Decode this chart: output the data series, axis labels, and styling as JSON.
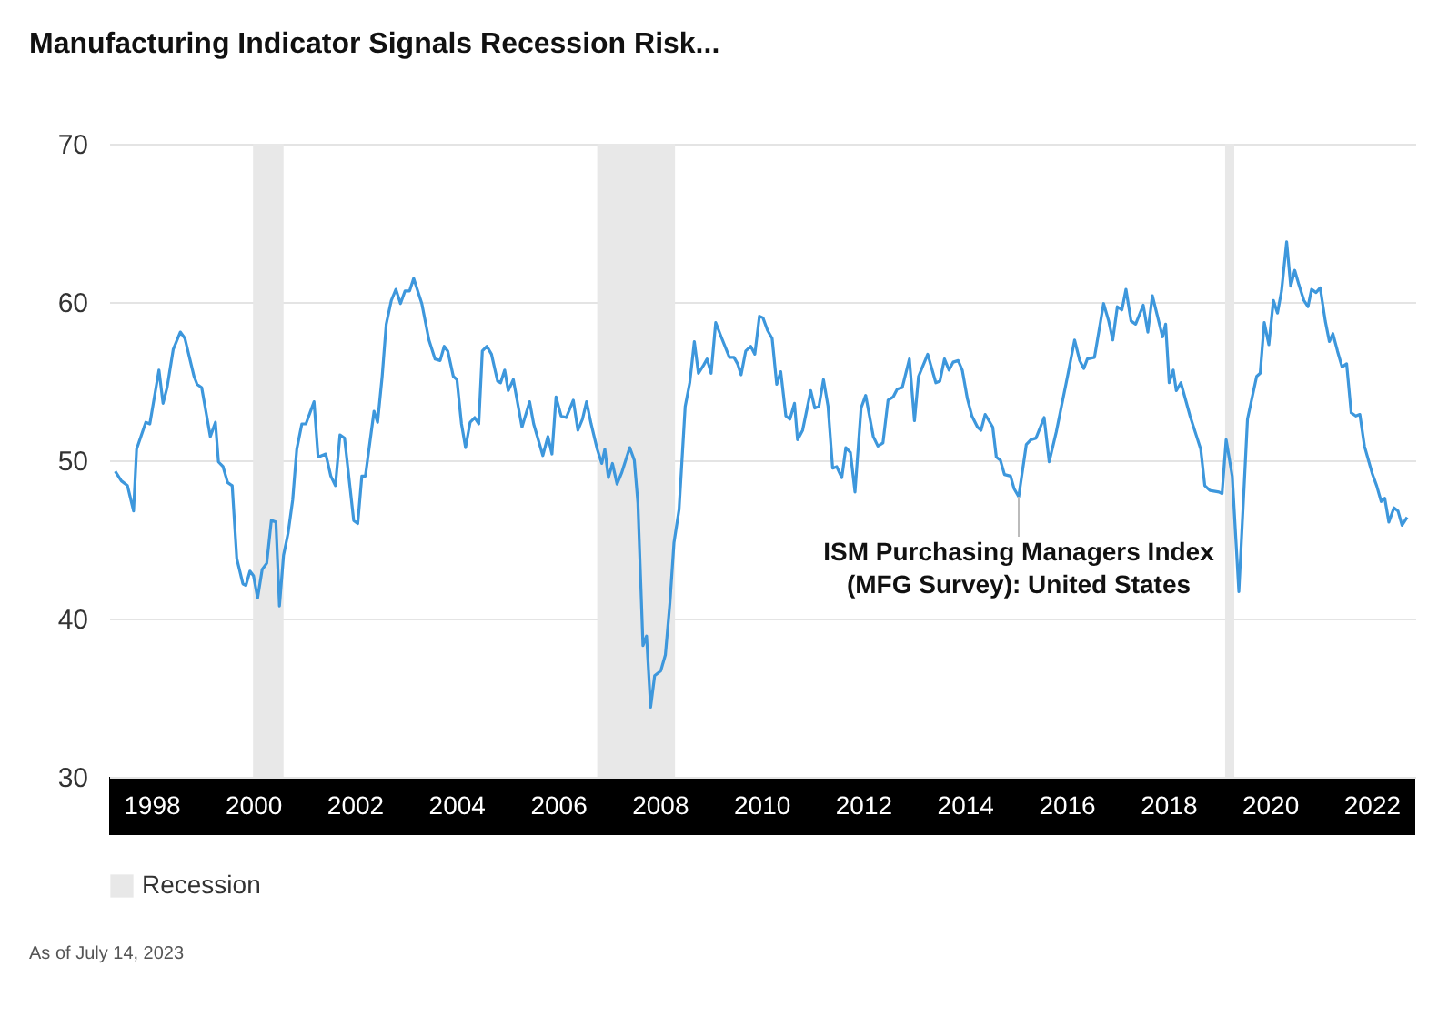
{
  "chart_data": {
    "type": "line",
    "title": "Manufacturing Indicator Signals Recession Risk...",
    "annotations": [
      {
        "text": "ISM Purchasing Managers Index\n(MFG Survey): United States",
        "x": 2015.06,
        "y": 47.7
      },
      "As of July 14, 2023"
    ],
    "xlim": [
      1997.17,
      2022.86
    ],
    "xticks": [
      1998,
      2000,
      2002,
      2004,
      2006,
      2008,
      2010,
      2012,
      2014,
      2016,
      2018,
      2020,
      2022
    ],
    "ylim": [
      30,
      70
    ],
    "yticks": [
      30,
      40,
      50,
      60,
      70
    ],
    "grid": "y",
    "legend": "bottom",
    "bands": [
      {
        "axis": "x",
        "from": 2000.0,
        "to": 2000.6,
        "label": "Recession",
        "color": "#e8e8e8"
      },
      {
        "axis": "x",
        "from": 2006.77,
        "to": 2008.3,
        "color": "#e8e8e8"
      },
      {
        "axis": "x",
        "from": 2019.12,
        "to": 2019.3,
        "color": "#e8e8e8"
      }
    ],
    "x": [
      1997.29,
      1997.41,
      1997.53,
      1997.65,
      1997.71,
      1997.89,
      1997.97,
      1998.15,
      1998.23,
      1998.31,
      1998.43,
      1998.57,
      1998.66,
      1998.84,
      1998.9,
      1998.99,
      1999.16,
      1999.26,
      1999.32,
      1999.41,
      1999.5,
      1999.59,
      1999.68,
      1999.8,
      1999.86,
      1999.94,
      2000.01,
      2000.09,
      2000.18,
      2000.27,
      2000.36,
      2000.45,
      2000.52,
      2000.6,
      2000.69,
      2000.78,
      2000.86,
      2000.96,
      2001.04,
      2001.2,
      2001.28,
      2001.43,
      2001.53,
      2001.62,
      2001.71,
      2001.8,
      2001.98,
      2002.06,
      2002.14,
      2002.21,
      2002.38,
      2002.45,
      2002.54,
      2002.62,
      2002.72,
      2002.81,
      2002.9,
      2002.99,
      2003.08,
      2003.16,
      2003.32,
      2003.46,
      2003.58,
      2003.68,
      2003.76,
      2003.83,
      2003.94,
      2004.01,
      2004.1,
      2004.18,
      2004.27,
      2004.36,
      2004.44,
      2004.51,
      2004.6,
      2004.69,
      2004.81,
      2004.87,
      2004.95,
      2005.02,
      2005.12,
      2005.29,
      2005.44,
      2005.52,
      2005.7,
      2005.8,
      2005.88,
      2005.96,
      2006.06,
      2006.16,
      2006.3,
      2006.39,
      2006.48,
      2006.56,
      2006.65,
      2006.77,
      2006.86,
      2006.92,
      2006.99,
      2007.07,
      2007.16,
      2007.25,
      2007.41,
      2007.5,
      2007.57,
      2007.67,
      2007.74,
      2007.82,
      2007.9,
      2008.02,
      2008.11,
      2008.2,
      2008.28,
      2008.38,
      2008.5,
      2008.59,
      2008.68,
      2008.76,
      2008.86,
      2008.93,
      2009.01,
      2009.1,
      2009.22,
      2009.37,
      2009.46,
      2009.53,
      2009.6,
      2009.69,
      2009.79,
      2009.87,
      2009.96,
      2010.03,
      2010.12,
      2010.21,
      2010.3,
      2010.38,
      2010.48,
      2010.56,
      2010.65,
      2010.71,
      2010.81,
      2010.97,
      2011.05,
      2011.13,
      2011.22,
      2011.31,
      2011.4,
      2011.48,
      2011.58,
      2011.66,
      2011.75,
      2011.84,
      2011.96,
      2012.05,
      2012.2,
      2012.29,
      2012.39,
      2012.49,
      2012.59,
      2012.67,
      2012.77,
      2012.91,
      2013.01,
      2013.09,
      2013.27,
      2013.43,
      2013.51,
      2013.6,
      2013.69,
      2013.77,
      2013.87,
      2013.95,
      2014.05,
      2014.14,
      2014.25,
      2014.32,
      2014.4,
      2014.55,
      2014.62,
      2014.7,
      2014.78,
      2014.9,
      2014.97,
      2015.06,
      2015.21,
      2015.3,
      2015.4,
      2015.56,
      2015.66,
      2015.8,
      2016.02,
      2016.16,
      2016.26,
      2016.34,
      2016.41,
      2016.55,
      2016.73,
      2016.83,
      2016.91,
      2017.0,
      2017.09,
      2017.17,
      2017.27,
      2017.36,
      2017.51,
      2017.6,
      2017.69,
      2017.89,
      2017.95,
      2018.02,
      2018.1,
      2018.16,
      2018.25,
      2018.43,
      2018.58,
      2018.64,
      2018.72,
      2018.82,
      2019.0,
      2019.06,
      2019.14,
      2019.26,
      2019.39,
      2019.56,
      2019.74,
      2019.81,
      2019.89,
      2019.98,
      2020.07,
      2020.15,
      2020.23,
      2020.33,
      2020.41,
      2020.49,
      2020.57,
      2020.67,
      2020.75,
      2020.82,
      2020.91,
      2020.99,
      2021.09,
      2021.17,
      2021.24,
      2021.33,
      2021.42,
      2021.51,
      2021.6,
      2021.69,
      2021.77,
      2021.86,
      2022.01,
      2022.1,
      2022.19,
      2022.26,
      2022.34,
      2022.44,
      2022.52,
      2022.6,
      2022.7
    ],
    "series": [
      {
        "color": "#3d97dc",
        "values": [
          49.3,
          48.7,
          48.4,
          46.8,
          50.7,
          52.4,
          52.3,
          55.7,
          53.6,
          54.6,
          57.0,
          58.1,
          57.7,
          55.3,
          54.8,
          54.6,
          51.5,
          52.4,
          49.9,
          49.6,
          48.6,
          48.4,
          43.8,
          42.2,
          42.1,
          43.0,
          42.7,
          41.3,
          43.1,
          43.5,
          46.2,
          46.1,
          40.8,
          44.0,
          45.4,
          47.5,
          50.7,
          52.3,
          52.3,
          53.7,
          50.2,
          50.4,
          49.0,
          48.4,
          51.6,
          51.4,
          46.2,
          46.0,
          49.0,
          49.0,
          53.1,
          52.4,
          55.3,
          58.6,
          60.1,
          60.8,
          59.9,
          60.7,
          60.7,
          61.5,
          59.9,
          57.6,
          56.4,
          56.3,
          57.2,
          56.9,
          55.3,
          55.1,
          52.3,
          50.8,
          52.4,
          52.7,
          52.3,
          56.9,
          57.2,
          56.7,
          55.0,
          54.9,
          55.7,
          54.4,
          55.1,
          52.1,
          53.7,
          52.3,
          50.3,
          51.5,
          50.4,
          54.0,
          52.8,
          52.7,
          53.8,
          51.9,
          52.6,
          53.7,
          52.3,
          50.7,
          49.8,
          50.7,
          48.9,
          49.8,
          48.5,
          49.2,
          50.8,
          50.0,
          47.3,
          38.3,
          38.9,
          34.4,
          36.4,
          36.7,
          37.7,
          41.0,
          44.8,
          46.9,
          53.4,
          54.9,
          57.5,
          55.5,
          56.0,
          56.4,
          55.5,
          58.7,
          57.7,
          56.5,
          56.5,
          56.1,
          55.4,
          56.9,
          57.2,
          56.7,
          59.1,
          59.0,
          58.2,
          57.7,
          54.8,
          55.6,
          52.8,
          52.6,
          53.6,
          51.3,
          51.9,
          54.4,
          53.3,
          53.4,
          55.1,
          53.4,
          49.5,
          49.6,
          48.9,
          50.8,
          50.5,
          48.0,
          53.3,
          54.1,
          51.5,
          50.9,
          51.1,
          53.8,
          54.0,
          54.5,
          54.6,
          56.4,
          52.5,
          55.3,
          56.7,
          54.9,
          55.0,
          56.4,
          55.7,
          56.2,
          56.3,
          55.7,
          53.9,
          52.8,
          52.1,
          51.9,
          52.9,
          52.1,
          50.2,
          50.0,
          49.1,
          49.0,
          48.2,
          47.7,
          51.0,
          51.3,
          51.4,
          52.7,
          49.9,
          51.8,
          55.3,
          57.6,
          56.3,
          55.8,
          56.4,
          56.5,
          59.9,
          58.8,
          57.6,
          59.7,
          59.5,
          60.8,
          58.8,
          58.6,
          59.8,
          58.1,
          60.4,
          57.8,
          58.6,
          54.9,
          55.7,
          54.4,
          54.9,
          52.8,
          51.3,
          50.7,
          48.4,
          48.1,
          48.0,
          47.9,
          51.3,
          49.0,
          41.7,
          52.6,
          55.3,
          55.5,
          58.7,
          57.3,
          60.1,
          59.3,
          60.7,
          63.8,
          61.0,
          62.0,
          61.1,
          60.1,
          59.7,
          60.8,
          60.6,
          60.9,
          58.8,
          57.5,
          58.0,
          56.9,
          55.9,
          56.1,
          53.0,
          52.8,
          52.9,
          50.9,
          49.2,
          48.4,
          47.4,
          47.6,
          46.1,
          47.0,
          46.8,
          45.9,
          46.4
        ]
      }
    ]
  }
}
